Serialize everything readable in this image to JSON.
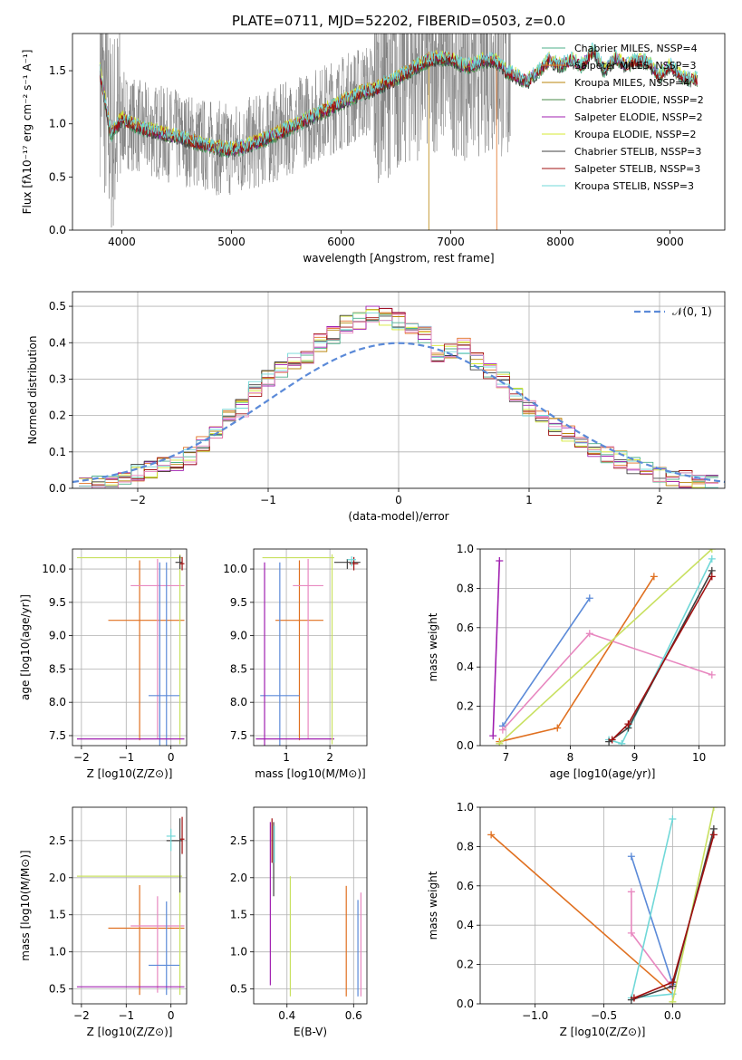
{
  "title": "PLATE=0711, MJD=52202, FIBERID=0503, z=0.0",
  "colors": {
    "data": "#808080",
    "chabrier_miles": "#4daf8a",
    "salpeter_miles": "#e07020",
    "kroupa_miles": "#b8860b",
    "chabrier_elodie": "#4a8a4a",
    "salpeter_elodie": "#a020b0",
    "kroupa_elodie": "#d4e830",
    "chabrier_stelib": "#404040",
    "salpeter_stelib": "#a01010",
    "kroupa_stelib": "#70d8d8",
    "blue": "#5b8ad8",
    "orange": "#e07020",
    "pink": "#e888c0",
    "purple": "#a020b0",
    "yellowgreen": "#c8e060",
    "cyan": "#70d8d8",
    "darkred": "#a01010",
    "dark": "#404040"
  },
  "chart_data": [
    {
      "type": "line",
      "xlabel": "wavelength [Angstrom, rest frame]",
      "ylabel": "Flux [fλ10⁻¹⁷ erg cm⁻² s⁻¹ A⁻¹]",
      "xlim": [
        3550,
        9500
      ],
      "ylim": [
        0,
        1.85
      ],
      "xticks": [
        "4000",
        "5000",
        "6000",
        "7000",
        "8000",
        "9000"
      ],
      "yticks": [
        "0.0",
        "0.5",
        "1.0",
        "1.5"
      ],
      "legend_position": "top-right",
      "legend": [
        "Chabrier MILES, N_SSP=4",
        "Salpeter MILES, N_SSP=3",
        "Kroupa MILES, N_SSP=4",
        "Chabrier ELODIE, N_SSP=2",
        "Salpeter ELODIE, N_SSP=2",
        "Kroupa ELODIE, N_SSP=2",
        "Chabrier STELIB, N_SSP=3",
        "Salpeter STELIB, N_SSP=3",
        "Kroupa STELIB, N_SSP=3"
      ],
      "model_continuum": {
        "x": [
          3800,
          3850,
          3900,
          4000,
          4100,
          4200,
          4300,
          4400,
          4500,
          4600,
          4700,
          4800,
          4900,
          5000,
          5100,
          5200,
          5300,
          5400,
          5500,
          5600,
          5700,
          5800,
          5900,
          6000,
          6100,
          6200,
          6300,
          6400,
          6500,
          6600,
          6700,
          6800,
          6900,
          7000,
          7100,
          7200,
          7300,
          7400,
          7500,
          7600,
          7700,
          7800,
          7900,
          8000,
          8100,
          8200,
          8300,
          8400,
          8500,
          8600,
          8700,
          8800,
          8900,
          9000,
          9100,
          9200
        ],
        "y": [
          1.5,
          1.2,
          0.9,
          1.05,
          1.0,
          0.95,
          0.93,
          0.9,
          0.88,
          0.85,
          0.82,
          0.79,
          0.77,
          0.76,
          0.78,
          0.82,
          0.85,
          0.9,
          0.95,
          1.0,
          1.05,
          1.1,
          1.15,
          1.2,
          1.25,
          1.3,
          1.32,
          1.38,
          1.42,
          1.48,
          1.55,
          1.6,
          1.62,
          1.62,
          1.55,
          1.55,
          1.6,
          1.6,
          1.5,
          1.45,
          1.4,
          1.5,
          1.6,
          1.55,
          1.6,
          1.55,
          1.7,
          1.5,
          1.62,
          1.55,
          1.6,
          1.58,
          1.45,
          1.55,
          1.45,
          1.42
        ]
      }
    },
    {
      "type": "bar",
      "xlabel": "(data-model)/error",
      "ylabel": "Normed distribution",
      "xlim": [
        -2.5,
        2.5
      ],
      "ylim": [
        0,
        0.54
      ],
      "xticks": [
        "−2",
        "−1",
        "0",
        "1",
        "2"
      ],
      "yticks": [
        "0.0",
        "0.1",
        "0.2",
        "0.3",
        "0.4",
        "0.5"
      ],
      "legend_position": "top-right",
      "legend": [
        "𝒩(0, 1)"
      ],
      "bin_centers": [
        -2.4,
        -2.3,
        -2.2,
        -2.1,
        -2.0,
        -1.9,
        -1.8,
        -1.7,
        -1.6,
        -1.5,
        -1.4,
        -1.3,
        -1.2,
        -1.1,
        -1.0,
        -0.9,
        -0.8,
        -0.7,
        -0.6,
        -0.5,
        -0.4,
        -0.3,
        -0.2,
        -0.1,
        0.0,
        0.1,
        0.2,
        0.3,
        0.4,
        0.5,
        0.6,
        0.7,
        0.8,
        0.9,
        1.0,
        1.1,
        1.2,
        1.3,
        1.4,
        1.5,
        1.6,
        1.7,
        1.8,
        1.9,
        2.0,
        2.1,
        2.2,
        2.3,
        2.4
      ],
      "histogram": [
        0.01,
        0.015,
        0.02,
        0.03,
        0.045,
        0.05,
        0.06,
        0.07,
        0.09,
        0.12,
        0.16,
        0.2,
        0.22,
        0.27,
        0.3,
        0.33,
        0.35,
        0.36,
        0.4,
        0.42,
        0.45,
        0.46,
        0.48,
        0.47,
        0.46,
        0.44,
        0.42,
        0.37,
        0.38,
        0.39,
        0.35,
        0.32,
        0.3,
        0.26,
        0.22,
        0.2,
        0.17,
        0.15,
        0.13,
        0.1,
        0.09,
        0.08,
        0.06,
        0.05,
        0.04,
        0.03,
        0.025,
        0.02,
        0.015
      ],
      "normal_curve": "N(0,1)"
    },
    {
      "type": "scatter",
      "xlabel": "Z [log10(Z/Z⊙)]",
      "ylabel": "age [log10(age/yr)]",
      "xlim": [
        -2.2,
        0.35
      ],
      "ylim": [
        7.35,
        10.3
      ],
      "xticks": [
        "−2",
        "−1",
        "0"
      ],
      "yticks": [
        "7.5",
        "8.0",
        "8.5",
        "9.0",
        "9.5",
        "10.0"
      ]
    },
    {
      "type": "scatter",
      "xlabel": "mass [log10(M/M⊙)]",
      "ylabel": "",
      "xlim": [
        0.25,
        2.85
      ],
      "ylim": [
        7.35,
        10.3
      ],
      "xticks": [
        "1",
        "2"
      ],
      "yticks": [
        "7.5",
        "8.0",
        "8.5",
        "9.0",
        "9.5",
        "10.0"
      ]
    },
    {
      "type": "line",
      "xlabel": "age  [log10(age/yr)]",
      "ylabel": "mass weight",
      "xlim": [
        6.6,
        10.4
      ],
      "ylim": [
        0,
        1.0
      ],
      "xticks": [
        "7",
        "8",
        "9",
        "10"
      ],
      "yticks": [
        "0.0",
        "0.2",
        "0.4",
        "0.6",
        "0.8",
        "1.0"
      ]
    },
    {
      "type": "scatter",
      "xlabel": "Z [log10(Z/Z⊙)]",
      "ylabel": "mass [log10(M/M⊙)]",
      "xlim": [
        -2.2,
        0.35
      ],
      "ylim": [
        0.3,
        2.95
      ],
      "xticks": [
        "−2",
        "−1",
        "0"
      ],
      "yticks": [
        "0.5",
        "1.0",
        "1.5",
        "2.0",
        "2.5"
      ]
    },
    {
      "type": "scatter",
      "xlabel": "E(B-V)",
      "ylabel": "",
      "xlim": [
        0.3,
        0.64
      ],
      "ylim": [
        0.3,
        2.95
      ],
      "xticks": [
        "0.4",
        "0.6"
      ],
      "yticks": [
        "0.5",
        "1.0",
        "1.5",
        "2.0",
        "2.5"
      ]
    },
    {
      "type": "line",
      "xlabel": "Z [log10(Z/Z⊙)]",
      "ylabel": "mass weight",
      "xlim": [
        -1.4,
        0.38
      ],
      "ylim": [
        0,
        1.0
      ],
      "xticks": [
        "−1.0",
        "−0.5",
        "0.0"
      ],
      "yticks": [
        "0.0",
        "0.2",
        "0.4",
        "0.6",
        "0.8",
        "1.0"
      ]
    }
  ]
}
